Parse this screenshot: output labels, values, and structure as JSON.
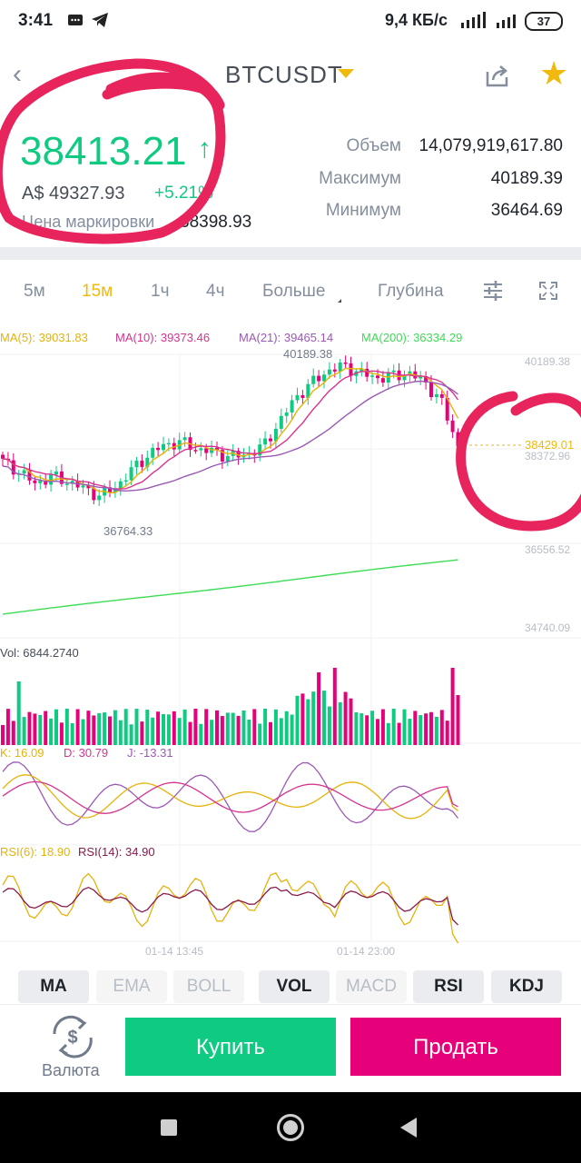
{
  "status_bar": {
    "time": "3:41",
    "network_speed": "9,4 КБ/с",
    "battery": "37"
  },
  "header": {
    "symbol": "BTCUSDT",
    "icons": [
      "back-arrow-icon",
      "share-icon",
      "star-icon"
    ]
  },
  "ticker": {
    "last_price": "38413.21",
    "trend_arrow": "↑",
    "fiat_price": "A$ 49327.93",
    "change": "+5.21%",
    "mark_label": "Цена маркировки",
    "mark_value": "38398.93",
    "volume_label": "Объем",
    "volume_value": "14,079,919,617.80",
    "high_label": "Максимум",
    "high_value": "40189.39",
    "low_label": "Минимум",
    "low_value": "36464.69"
  },
  "timeframes": {
    "items": [
      "5м",
      "15м",
      "1ч",
      "4ч",
      "Больше",
      "Глубина"
    ],
    "active": "15м"
  },
  "indicators": {
    "ma5": "MA(5): 39031.83",
    "ma10": "MA(10): 39373.46",
    "ma21": "MA(21): 39465.14",
    "ma200": "MA(200): 36334.29",
    "vol": "Vol: 6844.2740",
    "k": "K: 16.09",
    "d": "D: 30.79",
    "j": "J: -13.31",
    "rsi6": "RSI(6): 18.90",
    "rsi14": "RSI(14): 34.90"
  },
  "axis": {
    "price_labels": [
      "40189.38",
      "38372.96",
      "36556.52",
      "34740.09"
    ],
    "current_price_tag": "38429.01",
    "chart_high": "40189.38",
    "chart_low": "36764.33",
    "time_labels": [
      "01-14 13:45",
      "01-14 23:00"
    ]
  },
  "indicator_buttons": [
    {
      "label": "MA",
      "active": true
    },
    {
      "label": "EMA",
      "active": false
    },
    {
      "label": "BOLL",
      "active": false
    },
    {
      "label": "VOL",
      "active": true
    },
    {
      "label": "MACD",
      "active": false
    },
    {
      "label": "RSI",
      "active": true
    },
    {
      "label": "KDJ",
      "active": true
    }
  ],
  "actions": {
    "currency_label": "Валюта",
    "buy_label": "Купить",
    "sell_label": "Продать"
  },
  "colors": {
    "up": "#0ecb81",
    "down": "#e6007a",
    "accent": "#f0b90b",
    "ma5": "#e7b20a",
    "ma10": "#d6338f",
    "ma21": "#9b59b6",
    "ma200": "#3ddc55",
    "marker": "#e8245c"
  },
  "chart_data": {
    "type": "candlestick",
    "price_range": [
      34740.09,
      40189.38
    ],
    "candles_close_trend": [
      38100,
      37900,
      37650,
      37800,
      37700,
      37550,
      37400,
      37600,
      37950,
      38250,
      38450,
      38500,
      38350,
      38300,
      38200,
      38250,
      38400,
      38900,
      39400,
      39700,
      39950,
      40050,
      39900,
      39800,
      39850,
      39900,
      39700,
      39300,
      38413
    ],
    "volume_range_hint": "Vol: 6844.2740"
  }
}
